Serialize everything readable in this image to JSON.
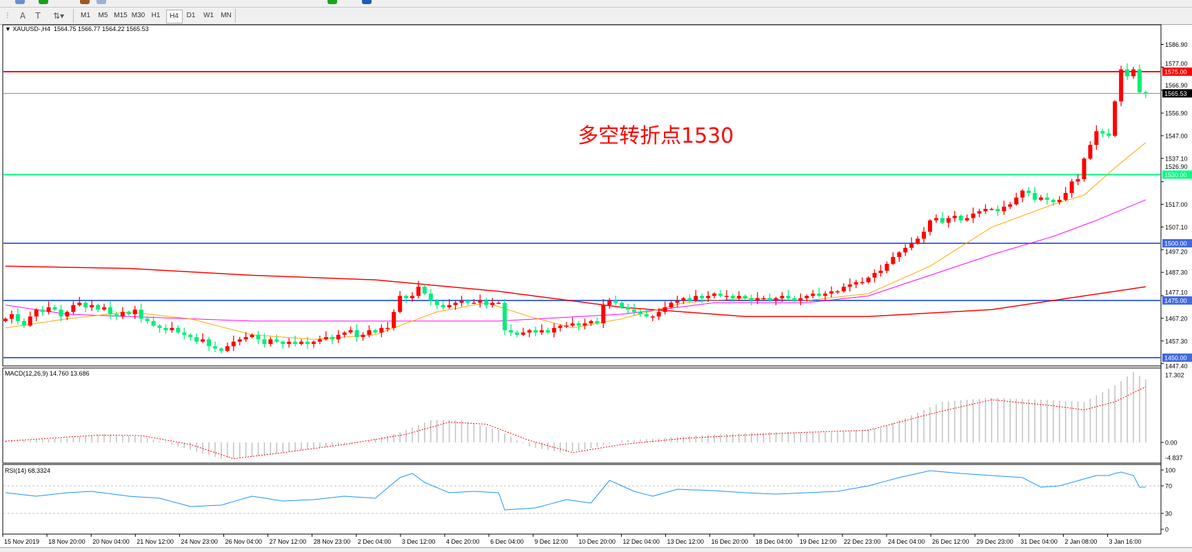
{
  "toolbar": {
    "timeframes": [
      "M1",
      "M5",
      "M15",
      "M30",
      "H1",
      "H4",
      "D1",
      "W1",
      "MN"
    ],
    "active_timeframe": "H4",
    "tools": [
      "fibonacci-icon",
      "text-icon",
      "text-label-icon",
      "arrows-icon"
    ]
  },
  "chart": {
    "symbol": "XAUUSD-,H4",
    "open": "1564.75",
    "high": "1566.77",
    "low": "1564.22",
    "close": "1565.53",
    "annotation": "多空转折点1530",
    "annotation_color": "#ff0000",
    "bull_color": "#ff0000",
    "bear_color": "#00ee76",
    "price_labels": [
      "1586.90",
      "1577.00",
      "1566.90",
      "1556.90",
      "1547.00",
      "1537.10",
      "1526.90",
      "1517.00",
      "1507.10",
      "1497.20",
      "1487.30",
      "1477.10",
      "1467.20",
      "1457.30",
      "1447.40"
    ],
    "current_price": "1565.53",
    "hlines": [
      {
        "price": 1575,
        "label": "1575.00",
        "color": "#ff0000"
      },
      {
        "price": 1530,
        "label": "1530.00",
        "color": "#00ff80"
      },
      {
        "price": 1500,
        "label": "1500.00",
        "color": "#4169e1"
      },
      {
        "price": 1475,
        "label": "1475.00",
        "color": "#4169e1"
      },
      {
        "price": 1450,
        "label": "1450.00",
        "color": "#4169e1"
      }
    ],
    "time_labels": [
      "15 Nov 2019",
      "18 Nov 20:00",
      "20 Nov 04:00",
      "21 Nov 12:00",
      "24 Nov 23:00",
      "26 Nov 04:00",
      "27 Nov 12:00",
      "28 Nov 23:00",
      "2 Dec 04:00",
      "3 Dec 12:00",
      "4 Dec 20:00",
      "6 Dec 04:00",
      "9 Dec 12:00",
      "10 Dec 20:00",
      "12 Dec 04:00",
      "13 Dec 12:00",
      "16 Dec 20:00",
      "18 Dec 04:00",
      "19 Dec 12:00",
      "22 Dec 23:00",
      "24 Dec 04:00",
      "26 Dec 12:00",
      "29 Dec 23:00",
      "31 Dec 04:00",
      "2 Jan 08:00",
      "3 Jan 16:00"
    ]
  },
  "chart_data": {
    "type": "candlestick",
    "closes": [
      1467,
      1469,
      1466,
      1464,
      1468,
      1471,
      1470,
      1472,
      1471,
      1468,
      1470,
      1473,
      1474,
      1472,
      1473,
      1471,
      1472,
      1469,
      1468,
      1470,
      1469,
      1471,
      1467,
      1466,
      1464,
      1463,
      1462,
      1463,
      1461,
      1460,
      1459,
      1457,
      1458,
      1455,
      1454,
      1453,
      1455,
      1457,
      1458,
      1459,
      1460,
      1458,
      1456,
      1458,
      1457,
      1456,
      1457,
      1456,
      1457,
      1456,
      1457,
      1458,
      1459,
      1458,
      1460,
      1461,
      1462,
      1459,
      1460,
      1462,
      1461,
      1463,
      1463,
      1470,
      1477,
      1476,
      1477,
      1481,
      1478,
      1475,
      1473,
      1472,
      1473,
      1474,
      1475,
      1474,
      1474,
      1475,
      1473,
      1474,
      1474,
      1462,
      1461,
      1460,
      1461,
      1462,
      1461,
      1462,
      1461,
      1463,
      1464,
      1464,
      1465,
      1464,
      1465,
      1466,
      1465,
      1473,
      1475,
      1474,
      1472,
      1471,
      1470,
      1469,
      1468,
      1468,
      1470,
      1472,
      1474,
      1475,
      1476,
      1475,
      1477,
      1476,
      1477,
      1478,
      1477,
      1477,
      1476,
      1477,
      1476,
      1475,
      1476,
      1476,
      1475,
      1476,
      1477,
      1476,
      1475,
      1476,
      1477,
      1478,
      1477,
      1478,
      1479,
      1479,
      1481,
      1482,
      1483,
      1483,
      1485,
      1487,
      1488,
      1491,
      1494,
      1496,
      1498,
      1500,
      1502,
      1505,
      1510,
      1511,
      1509,
      1511,
      1512,
      1510,
      1511,
      1513,
      1514,
      1515,
      1515,
      1514,
      1516,
      1517,
      1520,
      1523,
      1522,
      1519,
      1520,
      1519,
      1518,
      1519,
      1522,
      1527,
      1528,
      1537,
      1543,
      1549,
      1548,
      1547,
      1562,
      1576,
      1573,
      1576,
      1566,
      1565.53
    ],
    "ma_orange": [
      [
        0,
        1463
      ],
      [
        10,
        1467
      ],
      [
        20,
        1470
      ],
      [
        30,
        1467
      ],
      [
        40,
        1460
      ],
      [
        50,
        1458
      ],
      [
        60,
        1460
      ],
      [
        70,
        1470
      ],
      [
        78,
        1474
      ],
      [
        85,
        1468
      ],
      [
        92,
        1463
      ],
      [
        100,
        1467
      ],
      [
        110,
        1474
      ],
      [
        120,
        1476
      ],
      [
        130,
        1475
      ],
      [
        140,
        1478
      ],
      [
        150,
        1490
      ],
      [
        160,
        1507
      ],
      [
        170,
        1517
      ],
      [
        175,
        1521
      ],
      [
        180,
        1533
      ],
      [
        185,
        1544
      ]
    ],
    "ma_magenta": [
      [
        0,
        1473
      ],
      [
        10,
        1469
      ],
      [
        20,
        1468
      ],
      [
        30,
        1467
      ],
      [
        40,
        1466
      ],
      [
        60,
        1466
      ],
      [
        80,
        1466
      ],
      [
        100,
        1469
      ],
      [
        115,
        1474
      ],
      [
        130,
        1474
      ],
      [
        140,
        1477
      ],
      [
        150,
        1486
      ],
      [
        160,
        1495
      ],
      [
        170,
        1503
      ],
      [
        177,
        1510
      ],
      [
        185,
        1519
      ]
    ],
    "ma_red": [
      [
        0,
        1490
      ],
      [
        20,
        1489
      ],
      [
        40,
        1486
      ],
      [
        60,
        1484
      ],
      [
        80,
        1479
      ],
      [
        100,
        1472
      ],
      [
        120,
        1468
      ],
      [
        140,
        1468
      ],
      [
        160,
        1471
      ],
      [
        175,
        1477
      ],
      [
        185,
        1481
      ]
    ],
    "ma_colors": {
      "orange": "#ffa500",
      "magenta": "#ff00ff",
      "red": "#ff0000"
    },
    "macd": {
      "label": "MACD(12,26,9) 14.760 13.686",
      "axis_labels": [
        "17.302",
        "0.00",
        "-4.837"
      ],
      "histogram": [
        [
          0,
          0.3
        ],
        [
          10,
          1
        ],
        [
          16,
          2
        ],
        [
          22,
          1.5
        ],
        [
          28,
          -1
        ],
        [
          35,
          -4
        ],
        [
          40,
          -3.5
        ],
        [
          50,
          -1.5
        ],
        [
          58,
          0
        ],
        [
          64,
          2.5
        ],
        [
          69,
          5.5
        ],
        [
          74,
          5.5
        ],
        [
          80,
          3
        ],
        [
          85,
          -1
        ],
        [
          90,
          -2.5
        ],
        [
          95,
          -1.5
        ],
        [
          100,
          0.5
        ],
        [
          106,
          1
        ],
        [
          115,
          2
        ],
        [
          125,
          2.5
        ],
        [
          135,
          2.5
        ],
        [
          142,
          3.5
        ],
        [
          146,
          6
        ],
        [
          152,
          10
        ],
        [
          160,
          11
        ],
        [
          168,
          10.5
        ],
        [
          175,
          10
        ],
        [
          180,
          14
        ],
        [
          183,
          17.3
        ],
        [
          185,
          15.5
        ]
      ],
      "signal": [
        [
          0,
          0.3
        ],
        [
          15,
          1.8
        ],
        [
          22,
          1.7
        ],
        [
          30,
          -0.5
        ],
        [
          37,
          -4
        ],
        [
          45,
          -2.5
        ],
        [
          55,
          -0.5
        ],
        [
          65,
          2
        ],
        [
          72,
          5
        ],
        [
          78,
          4.5
        ],
        [
          85,
          0.5
        ],
        [
          92,
          -2.5
        ],
        [
          100,
          -0.5
        ],
        [
          110,
          1
        ],
        [
          120,
          1.8
        ],
        [
          130,
          2.5
        ],
        [
          140,
          3
        ],
        [
          150,
          7
        ],
        [
          160,
          10.5
        ],
        [
          170,
          9
        ],
        [
          175,
          8
        ],
        [
          180,
          10
        ],
        [
          185,
          13.7
        ]
      ]
    },
    "rsi": {
      "label": "RSI(14) 68.3324",
      "axis_labels": [
        "100",
        "70",
        "30",
        "0"
      ],
      "levels": [
        70,
        30
      ],
      "values": [
        [
          0,
          60
        ],
        [
          5,
          55
        ],
        [
          10,
          60
        ],
        [
          14,
          62
        ],
        [
          20,
          55
        ],
        [
          25,
          52
        ],
        [
          30,
          40
        ],
        [
          35,
          42
        ],
        [
          40,
          55
        ],
        [
          45,
          48
        ],
        [
          50,
          50
        ],
        [
          55,
          55
        ],
        [
          60,
          52
        ],
        [
          64,
          82
        ],
        [
          66,
          88
        ],
        [
          68,
          75
        ],
        [
          72,
          60
        ],
        [
          76,
          62
        ],
        [
          80,
          60
        ],
        [
          81,
          35
        ],
        [
          86,
          38
        ],
        [
          91,
          50
        ],
        [
          95,
          45
        ],
        [
          98,
          78
        ],
        [
          102,
          62
        ],
        [
          105,
          55
        ],
        [
          109,
          65
        ],
        [
          115,
          63
        ],
        [
          120,
          60
        ],
        [
          125,
          58
        ],
        [
          130,
          60
        ],
        [
          135,
          62
        ],
        [
          140,
          70
        ],
        [
          145,
          82
        ],
        [
          150,
          92
        ],
        [
          155,
          88
        ],
        [
          160,
          85
        ],
        [
          165,
          82
        ],
        [
          168,
          68
        ],
        [
          171,
          70
        ],
        [
          175,
          80
        ],
        [
          177,
          85
        ],
        [
          179,
          85
        ],
        [
          180,
          88
        ],
        [
          181,
          90
        ],
        [
          183,
          85
        ],
        [
          184,
          68
        ],
        [
          185,
          68.3
        ]
      ]
    }
  }
}
